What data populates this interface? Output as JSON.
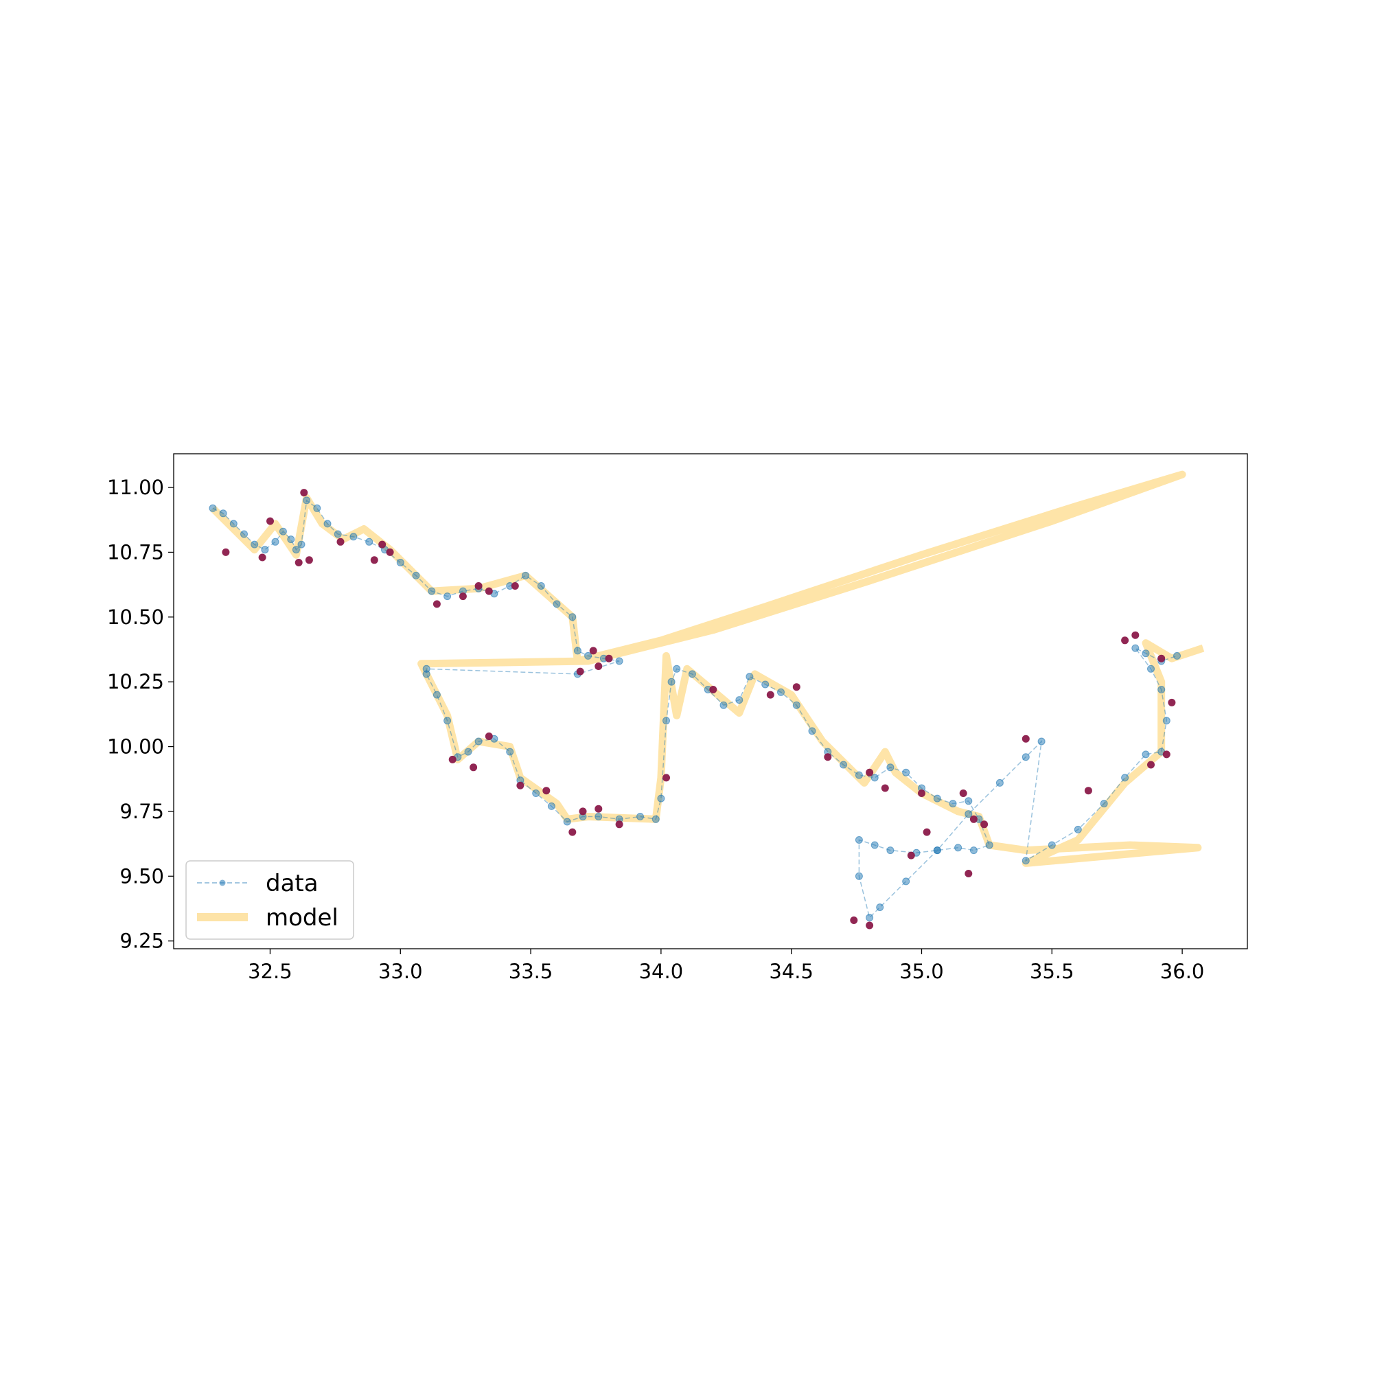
{
  "chart_data": {
    "type": "line",
    "title": "",
    "xlabel": "",
    "ylabel": "",
    "xlim": [
      32.13,
      36.25
    ],
    "ylim": [
      9.22,
      11.13
    ],
    "xticks": [
      32.5,
      33.0,
      33.5,
      34.0,
      34.5,
      35.0,
      35.5,
      36.0
    ],
    "xtick_labels": [
      "32.5",
      "33.0",
      "33.5",
      "34.0",
      "34.5",
      "35.0",
      "35.5",
      "36.0"
    ],
    "yticks": [
      9.25,
      9.5,
      9.75,
      10.0,
      10.25,
      10.5,
      10.75,
      11.0
    ],
    "ytick_labels": [
      "9.25",
      "9.50",
      "9.75",
      "10.00",
      "10.25",
      "10.50",
      "10.75",
      "11.00"
    ],
    "grid": false,
    "legend": {
      "placement": "lower-left",
      "entries": [
        "data",
        "model"
      ]
    },
    "colors": {
      "data": "#1f77b4",
      "model": "#fdd26e",
      "outlier": "#8b1a4a"
    },
    "series": [
      {
        "name": "data",
        "style": "dashed line with circle markers",
        "points": [
          [
            32.28,
            10.92
          ],
          [
            32.32,
            10.9
          ],
          [
            32.36,
            10.86
          ],
          [
            32.4,
            10.82
          ],
          [
            32.44,
            10.78
          ],
          [
            32.48,
            10.76
          ],
          [
            32.52,
            10.79
          ],
          [
            32.55,
            10.83
          ],
          [
            32.58,
            10.8
          ],
          [
            32.6,
            10.76
          ],
          [
            32.62,
            10.78
          ],
          [
            32.64,
            10.95
          ],
          [
            32.68,
            10.92
          ],
          [
            32.72,
            10.86
          ],
          [
            32.76,
            10.82
          ],
          [
            32.82,
            10.81
          ],
          [
            32.88,
            10.79
          ],
          [
            32.94,
            10.76
          ],
          [
            33.0,
            10.71
          ],
          [
            33.06,
            10.66
          ],
          [
            33.12,
            10.6
          ],
          [
            33.18,
            10.58
          ],
          [
            33.24,
            10.6
          ],
          [
            33.3,
            10.61
          ],
          [
            33.36,
            10.59
          ],
          [
            33.42,
            10.62
          ],
          [
            33.48,
            10.66
          ],
          [
            33.54,
            10.62
          ],
          [
            33.6,
            10.55
          ],
          [
            33.66,
            10.5
          ],
          [
            33.68,
            10.37
          ],
          [
            33.72,
            10.35
          ],
          [
            33.78,
            10.34
          ],
          [
            33.84,
            10.33
          ],
          [
            33.68,
            10.28
          ],
          [
            33.1,
            10.3
          ],
          [
            33.1,
            10.28
          ],
          [
            33.14,
            10.2
          ],
          [
            33.18,
            10.1
          ],
          [
            33.22,
            9.96
          ],
          [
            33.26,
            9.98
          ],
          [
            33.3,
            10.02
          ],
          [
            33.36,
            10.03
          ],
          [
            33.42,
            9.98
          ],
          [
            33.46,
            9.87
          ],
          [
            33.52,
            9.82
          ],
          [
            33.58,
            9.77
          ],
          [
            33.64,
            9.71
          ],
          [
            33.7,
            9.73
          ],
          [
            33.76,
            9.73
          ],
          [
            33.84,
            9.72
          ],
          [
            33.92,
            9.73
          ],
          [
            33.98,
            9.72
          ],
          [
            34.0,
            9.8
          ],
          [
            34.02,
            10.1
          ],
          [
            34.04,
            10.25
          ],
          [
            34.06,
            10.3
          ],
          [
            34.12,
            10.28
          ],
          [
            34.18,
            10.22
          ],
          [
            34.24,
            10.16
          ],
          [
            34.3,
            10.18
          ],
          [
            34.34,
            10.27
          ],
          [
            34.4,
            10.24
          ],
          [
            34.46,
            10.21
          ],
          [
            34.52,
            10.16
          ],
          [
            34.58,
            10.06
          ],
          [
            34.64,
            9.98
          ],
          [
            34.7,
            9.93
          ],
          [
            34.76,
            9.89
          ],
          [
            34.82,
            9.88
          ],
          [
            34.88,
            9.92
          ],
          [
            34.94,
            9.9
          ],
          [
            35.0,
            9.84
          ],
          [
            35.06,
            9.8
          ],
          [
            35.12,
            9.78
          ],
          [
            35.18,
            9.79
          ],
          [
            35.22,
            9.72
          ],
          [
            35.26,
            9.62
          ],
          [
            35.2,
            9.6
          ],
          [
            35.14,
            9.61
          ],
          [
            35.06,
            9.6
          ],
          [
            34.98,
            9.59
          ],
          [
            34.88,
            9.6
          ],
          [
            34.82,
            9.62
          ],
          [
            34.76,
            9.64
          ],
          [
            34.76,
            9.5
          ],
          [
            34.8,
            9.34
          ],
          [
            34.84,
            9.38
          ],
          [
            34.94,
            9.48
          ],
          [
            35.06,
            9.6
          ],
          [
            35.18,
            9.74
          ],
          [
            35.3,
            9.86
          ],
          [
            35.4,
            9.96
          ],
          [
            35.46,
            10.02
          ],
          [
            35.4,
            9.56
          ],
          [
            35.5,
            9.62
          ],
          [
            35.6,
            9.68
          ],
          [
            35.7,
            9.78
          ],
          [
            35.78,
            9.88
          ],
          [
            35.86,
            9.97
          ],
          [
            35.92,
            9.98
          ],
          [
            35.94,
            10.1
          ],
          [
            35.92,
            10.22
          ],
          [
            35.88,
            10.3
          ],
          [
            35.82,
            10.38
          ],
          [
            35.86,
            10.36
          ],
          [
            35.92,
            10.33
          ],
          [
            35.98,
            10.35
          ]
        ]
      },
      {
        "name": "model",
        "style": "thick translucent line",
        "points": [
          [
            32.28,
            10.92
          ],
          [
            32.44,
            10.76
          ],
          [
            32.52,
            10.86
          ],
          [
            32.6,
            10.74
          ],
          [
            32.64,
            10.96
          ],
          [
            32.7,
            10.86
          ],
          [
            32.78,
            10.8
          ],
          [
            32.86,
            10.84
          ],
          [
            32.96,
            10.76
          ],
          [
            33.12,
            10.6
          ],
          [
            33.3,
            10.61
          ],
          [
            33.48,
            10.66
          ],
          [
            33.66,
            10.5
          ],
          [
            33.68,
            10.33
          ],
          [
            34.0,
            10.41
          ],
          [
            34.4,
            10.54
          ],
          [
            35.0,
            10.74
          ],
          [
            35.6,
            10.93
          ],
          [
            36.0,
            11.05
          ],
          [
            35.5,
            10.87
          ],
          [
            34.8,
            10.64
          ],
          [
            34.2,
            10.45
          ],
          [
            33.72,
            10.33
          ],
          [
            33.08,
            10.32
          ],
          [
            33.18,
            10.12
          ],
          [
            33.22,
            9.95
          ],
          [
            33.3,
            10.02
          ],
          [
            33.42,
            10.0
          ],
          [
            33.46,
            9.88
          ],
          [
            33.6,
            9.78
          ],
          [
            33.64,
            9.72
          ],
          [
            33.72,
            9.73
          ],
          [
            33.98,
            9.72
          ],
          [
            34.0,
            9.88
          ],
          [
            34.02,
            10.35
          ],
          [
            34.06,
            10.12
          ],
          [
            34.1,
            10.3
          ],
          [
            34.3,
            10.13
          ],
          [
            34.36,
            10.28
          ],
          [
            34.5,
            10.2
          ],
          [
            34.62,
            10.02
          ],
          [
            34.74,
            9.9
          ],
          [
            34.78,
            9.86
          ],
          [
            34.86,
            9.98
          ],
          [
            34.9,
            9.9
          ],
          [
            35.0,
            9.82
          ],
          [
            35.14,
            9.75
          ],
          [
            35.22,
            9.73
          ],
          [
            35.26,
            9.62
          ],
          [
            35.4,
            9.6
          ],
          [
            35.8,
            9.62
          ],
          [
            36.06,
            9.61
          ],
          [
            35.4,
            9.55
          ],
          [
            35.6,
            9.64
          ],
          [
            35.78,
            9.86
          ],
          [
            35.92,
            9.98
          ],
          [
            35.92,
            10.25
          ],
          [
            35.86,
            10.4
          ],
          [
            35.96,
            10.34
          ],
          [
            36.08,
            10.38
          ]
        ]
      }
    ],
    "outliers": [
      [
        32.33,
        10.75
      ],
      [
        32.47,
        10.73
      ],
      [
        32.5,
        10.87
      ],
      [
        32.63,
        10.98
      ],
      [
        32.61,
        10.71
      ],
      [
        32.65,
        10.72
      ],
      [
        32.77,
        10.79
      ],
      [
        32.9,
        10.72
      ],
      [
        32.93,
        10.78
      ],
      [
        32.96,
        10.75
      ],
      [
        33.14,
        10.55
      ],
      [
        33.24,
        10.58
      ],
      [
        33.3,
        10.62
      ],
      [
        33.34,
        10.6
      ],
      [
        33.44,
        10.62
      ],
      [
        33.69,
        10.29
      ],
      [
        33.74,
        10.37
      ],
      [
        33.76,
        10.31
      ],
      [
        33.8,
        10.34
      ],
      [
        33.2,
        9.95
      ],
      [
        33.28,
        9.92
      ],
      [
        33.34,
        10.04
      ],
      [
        33.46,
        9.85
      ],
      [
        33.56,
        9.83
      ],
      [
        33.66,
        9.67
      ],
      [
        33.7,
        9.75
      ],
      [
        33.76,
        9.76
      ],
      [
        33.84,
        9.7
      ],
      [
        34.02,
        9.88
      ],
      [
        34.2,
        10.22
      ],
      [
        34.42,
        10.2
      ],
      [
        34.52,
        10.23
      ],
      [
        34.64,
        9.96
      ],
      [
        34.8,
        9.9
      ],
      [
        34.86,
        9.84
      ],
      [
        35.0,
        9.82
      ],
      [
        35.02,
        9.67
      ],
      [
        35.16,
        9.82
      ],
      [
        35.18,
        9.51
      ],
      [
        35.2,
        9.72
      ],
      [
        35.24,
        9.7
      ],
      [
        35.4,
        10.03
      ],
      [
        34.74,
        9.33
      ],
      [
        34.8,
        9.31
      ],
      [
        34.96,
        9.58
      ],
      [
        35.64,
        9.83
      ],
      [
        35.78,
        10.41
      ],
      [
        35.82,
        10.43
      ],
      [
        35.92,
        10.34
      ],
      [
        35.96,
        10.17
      ],
      [
        35.88,
        9.93
      ],
      [
        35.94,
        9.97
      ]
    ]
  }
}
